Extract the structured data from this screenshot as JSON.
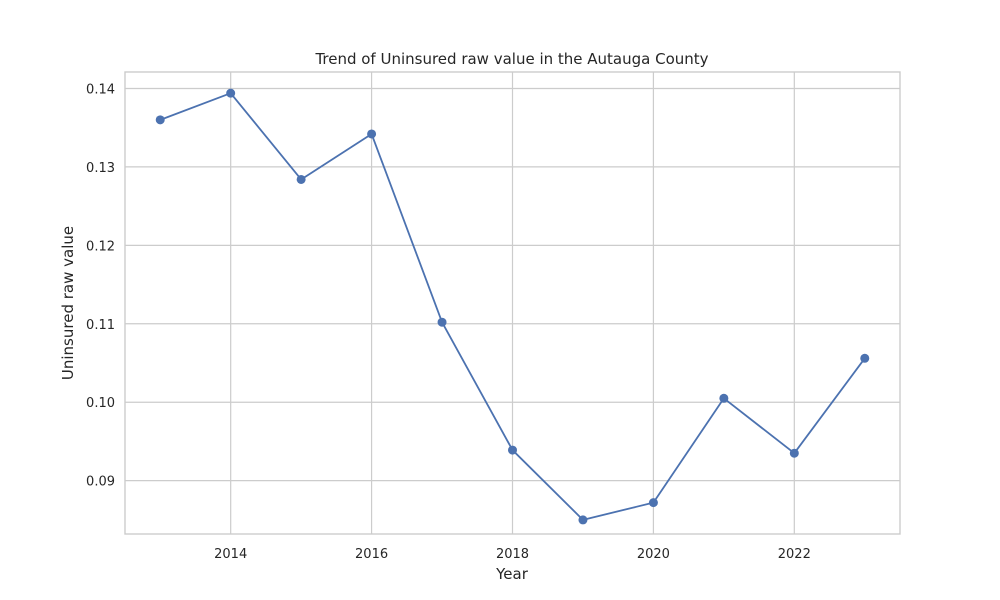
{
  "chart_data": {
    "type": "line",
    "title": "Trend of Uninsured raw value in the Autauga County",
    "xlabel": "Year",
    "ylabel": "Uninsured raw value",
    "xlim": [
      2012.5,
      2023.5
    ],
    "ylim": [
      0.0832,
      0.1421
    ],
    "xticks": [
      2014,
      2016,
      2018,
      2020,
      2022
    ],
    "xtick_labels": [
      "2014",
      "2016",
      "2018",
      "2020",
      "2022"
    ],
    "yticks": [
      0.09,
      0.1,
      0.11,
      0.12,
      0.13,
      0.14
    ],
    "ytick_labels": [
      "0.09",
      "0.10",
      "0.11",
      "0.12",
      "0.13",
      "0.14"
    ],
    "grid": true,
    "color": "#4c72b0",
    "series": [
      {
        "x": [
          2013,
          2014,
          2015,
          2016,
          2017,
          2018,
          2019,
          2020,
          2021,
          2022,
          2023
        ],
        "values": [
          0.136,
          0.1394,
          0.1284,
          0.1342,
          0.1102,
          0.0939,
          0.085,
          0.0872,
          0.1005,
          0.0935,
          0.1056
        ]
      }
    ]
  }
}
